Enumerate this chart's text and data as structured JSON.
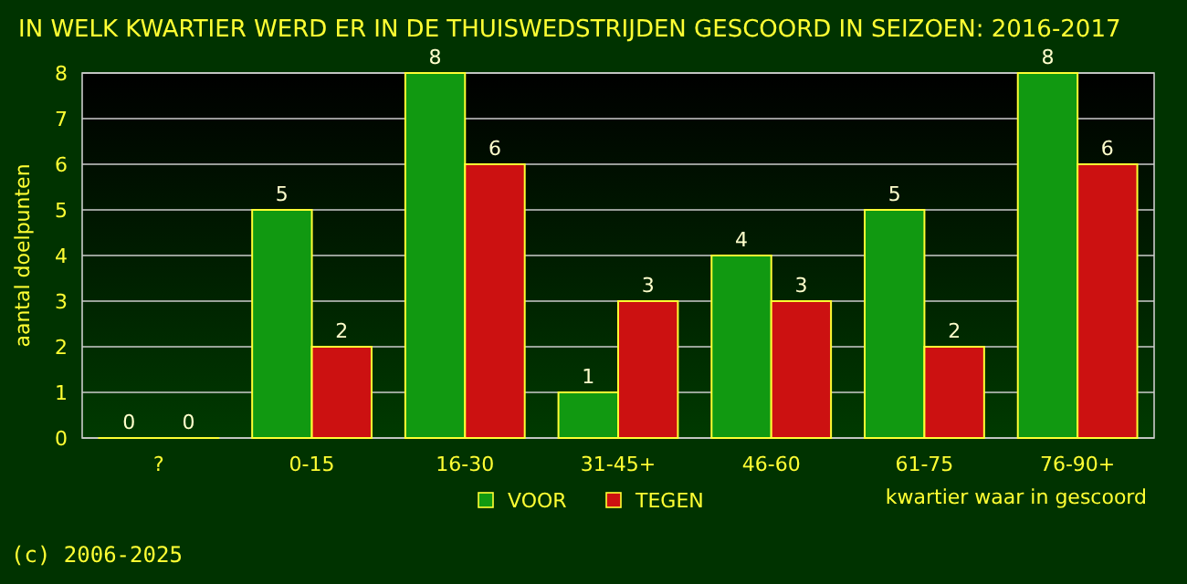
{
  "chart_data": {
    "type": "bar",
    "title": "IN WELK KWARTIER WERD ER IN DE THUISWEDSTRIJDEN GESCOORD IN SEIZOEN: 2016-2017",
    "xlabel": "kwartier waar in gescoord",
    "ylabel": "aantal doelpunten",
    "categories": [
      "?",
      "0-15",
      "16-30",
      "31-45+",
      "46-60",
      "61-75",
      "76-90+"
    ],
    "series": [
      {
        "name": "VOOR",
        "color": "#119911",
        "values": [
          0,
          5,
          8,
          1,
          4,
          5,
          8
        ]
      },
      {
        "name": "TEGEN",
        "color": "#cc1111",
        "values": [
          0,
          2,
          6,
          3,
          3,
          2,
          6
        ]
      }
    ],
    "ylim": [
      0,
      8
    ],
    "yticks": [
      0,
      1,
      2,
      3,
      4,
      5,
      6,
      7,
      8
    ],
    "grid": "y",
    "data_labels": true,
    "legend": "bottom",
    "annotations": [
      "(c) 2006-2025"
    ]
  }
}
